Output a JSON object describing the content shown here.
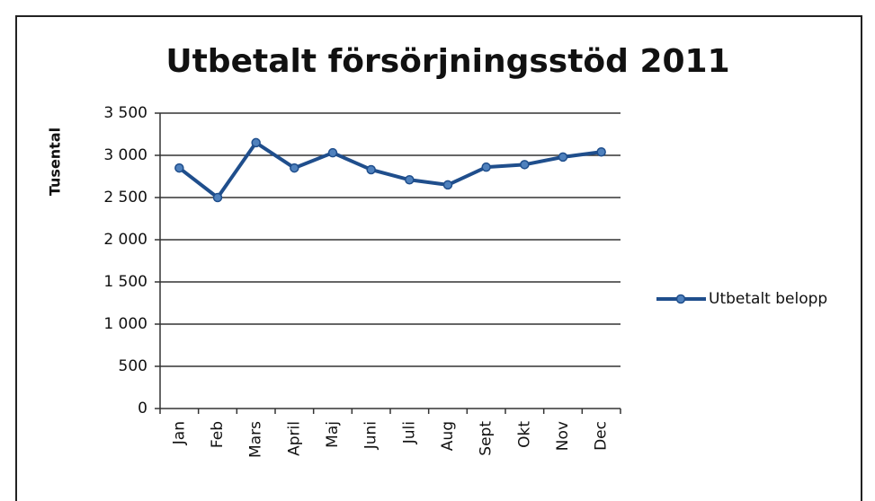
{
  "chart_data": {
    "type": "line",
    "title": "Utbetalt försörjningsstöd 2011",
    "ylabel": "Tusental",
    "categories": [
      "Jan",
      "Feb",
      "Mars",
      "April",
      "Maj",
      "Juni",
      "Juli",
      "Aug",
      "Sept",
      "Okt",
      "Nov",
      "Dec"
    ],
    "series": [
      {
        "name": "Utbetalt belopp",
        "color": "#1f4e8c",
        "values": [
          2850,
          2500,
          3150,
          2850,
          3030,
          2830,
          2710,
          2650,
          2860,
          2890,
          2980,
          3040
        ]
      }
    ],
    "ylim": [
      0,
      3500
    ],
    "yticks": [
      0,
      500,
      {
        "value": 1000,
        "label": "1 000"
      },
      {
        "value": 1500,
        "label": "1 500"
      },
      {
        "value": 2000,
        "label": "2 000"
      },
      {
        "value": 2500,
        "label": "2 500"
      },
      {
        "value": 3000,
        "label": "3 000"
      },
      {
        "value": 3500,
        "label": "3 500"
      }
    ],
    "grid": true,
    "legend": "right"
  }
}
